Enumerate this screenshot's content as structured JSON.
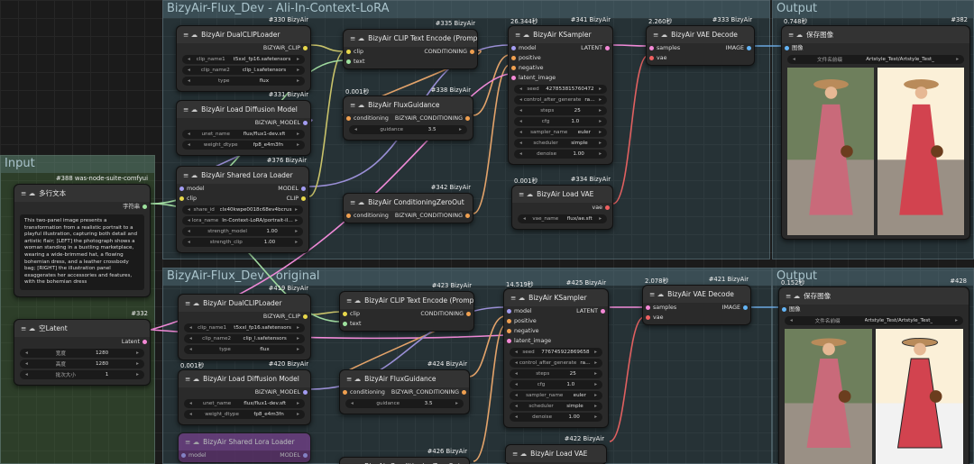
{
  "groups": [
    {
      "title": "BizyAir-Flux_Dev - Ali-In-Context-LoRA"
    },
    {
      "title": "Input"
    },
    {
      "title": "Output"
    },
    {
      "title": "BizyAir-Flux_Dev - original"
    },
    {
      "title": "Output"
    }
  ],
  "nodes": [
    {
      "badge": "#330 BizyAir",
      "title": "BizyAir DualCLIPLoader",
      "inputs": [],
      "outputs": [
        "BIZYAIR_CLIP"
      ],
      "widgets": [
        {
          "name": "clip_name1",
          "value": "t5xxl_fp16.safetensors"
        },
        {
          "name": "clip_name2",
          "value": "clip_l.safetensors"
        },
        {
          "name": "type",
          "value": "flux"
        }
      ]
    },
    {
      "badge": "#331 BizyAir",
      "title": "BizyAir Load Diffusion Model",
      "inputs": [],
      "outputs": [
        "BIZYAIR_MODEL"
      ],
      "widgets": [
        {
          "name": "unet_name",
          "value": "flux/flux1-dev.sft"
        },
        {
          "name": "weight_dtype",
          "value": "fp8_e4m3fn"
        }
      ]
    },
    {
      "badge": "#376 BizyAir",
      "title": "BizyAir Shared Lora Loader",
      "inputs": [
        "model",
        "clip"
      ],
      "outputs": [
        "MODEL",
        "CLIP"
      ],
      "widgets": [
        {
          "name": "share_id",
          "value": "clx40kwpe0018c68ev4bcrus"
        },
        {
          "name": "lora_name",
          "value": "In-Context-LoRA/portrait-illustrat..."
        },
        {
          "name": "strength_model",
          "value": "1.00"
        },
        {
          "name": "strength_clip",
          "value": "1.00"
        }
      ]
    },
    {
      "badge": "#335 BizyAir",
      "title": "BizyAir CLIP Text Encode (Prompt)",
      "inputs": [
        "clip",
        "text"
      ],
      "outputs": [
        "CONDITIONING"
      ],
      "widgets": []
    },
    {
      "badge": "#338 BizyAir",
      "time": "0.001秒",
      "title": "BizyAir FluxGuidance",
      "inputs": [
        "conditioning"
      ],
      "outputs": [
        "BIZYAIR_CONDITIONING"
      ],
      "widgets": [
        {
          "name": "guidance",
          "value": "3.5"
        }
      ]
    },
    {
      "badge": "#342 BizyAir",
      "title": "BizyAir ConditioningZeroOut",
      "inputs": [
        "conditioning"
      ],
      "outputs": [
        "BIZYAIR_CONDITIONING"
      ],
      "widgets": []
    },
    {
      "badge": "#341 BizyAir",
      "time": "26.344秒",
      "title": "BizyAir KSampler",
      "inputs": [
        "model",
        "positive",
        "negative",
        "latent_image"
      ],
      "outputs": [
        "LATENT"
      ],
      "widgets": [
        {
          "name": "seed",
          "value": "427853815760472"
        },
        {
          "name": "control_after_generate",
          "value": "randomize"
        },
        {
          "name": "steps",
          "value": "25"
        },
        {
          "name": "cfg",
          "value": "1.0"
        },
        {
          "name": "sampler_name",
          "value": "euler"
        },
        {
          "name": "scheduler",
          "value": "simple"
        },
        {
          "name": "denoise",
          "value": "1.00"
        }
      ]
    },
    {
      "badge": "#334 BizyAir",
      "time": "0.001秒",
      "title": "BizyAir Load VAE",
      "inputs": [],
      "outputs": [
        "vae"
      ],
      "widgets": [
        {
          "name": "vae_name",
          "value": "flux/ae.sft"
        }
      ]
    },
    {
      "badge": "#333 BizyAir",
      "time": "2.260秒",
      "title": "BizyAir VAE Decode",
      "inputs": [
        "samples",
        "vae"
      ],
      "outputs": [
        "IMAGE"
      ],
      "widgets": []
    },
    {
      "badge": "#382",
      "time": "0.748秒",
      "title": "保存图像",
      "inputs": [
        "图像"
      ],
      "outputs": [],
      "widgets": [
        {
          "name": "文件名前缀",
          "value": "Artstyle_Test/Artstyle_Test_"
        }
      ]
    },
    {
      "badge": "#388 was-node-suite-comfyui",
      "title": "多行文本",
      "inputs": [],
      "outputs": [
        "字符串"
      ],
      "widgets": [],
      "text": "This two-panel image presents a transformation from a realistic portrait to a playful illustration, capturing both detail and artistic flair; [LEFT] the photograph shows a woman standing in a bustling marketplace, wearing a wide-brimmed hat, a flowing bohemian dress, and a leather crossbody bag; [RIGHT] the illustration panel exaggerates her accessories and features, with the bohemian dress"
    },
    {
      "badge": "#332",
      "title": "空Latent",
      "inputs": [],
      "outputs": [
        "Latent"
      ],
      "widgets": [
        {
          "name": "宽度",
          "value": "1280"
        },
        {
          "name": "高度",
          "value": "1280"
        },
        {
          "name": "批次大小",
          "value": "1"
        }
      ]
    },
    {
      "badge": "#419 BizyAir",
      "title": "BizyAir DualCLIPLoader",
      "inputs": [],
      "outputs": [
        "BIZYAIR_CLIP"
      ],
      "widgets": [
        {
          "name": "clip_name1",
          "value": "t5xxl_fp16.safetensors"
        },
        {
          "name": "clip_name2",
          "value": "clip_l.safetensors"
        },
        {
          "name": "type",
          "value": "flux"
        }
      ]
    },
    {
      "badge": "#420 BizyAir",
      "time": "0.001秒",
      "title": "BizyAir Load Diffusion Model",
      "inputs": [],
      "outputs": [
        "BIZYAIR_MODEL"
      ],
      "widgets": [
        {
          "name": "unet_name",
          "value": "flux/flux1-dev.sft"
        },
        {
          "name": "weight_dtype",
          "value": "fp8_e4m3fn"
        }
      ]
    },
    {
      "title": "BizyAir Shared Lora Loader",
      "inputs": [
        "model"
      ],
      "outputs": [
        "MODEL"
      ],
      "widgets": []
    },
    {
      "badge": "#423 BizyAir",
      "title": "BizyAir CLIP Text Encode (Prompt)",
      "inputs": [
        "clip",
        "text"
      ],
      "outputs": [
        "CONDITIONING"
      ],
      "widgets": []
    },
    {
      "badge": "#424 BizyAir",
      "title": "BizyAir FluxGuidance",
      "inputs": [
        "conditioning"
      ],
      "outputs": [
        "BIZYAIR_CONDITIONING"
      ],
      "widgets": [
        {
          "name": "guidance",
          "value": "3.5"
        }
      ]
    },
    {
      "badge": "#426 BizyAir",
      "title": "BizyAir ConditioningZeroOut",
      "inputs": [],
      "outputs": [],
      "widgets": []
    },
    {
      "badge": "#425 BizyAir",
      "time": "14.519秒",
      "title": "BizyAir KSampler",
      "inputs": [
        "model",
        "positive",
        "negative",
        "latent_image"
      ],
      "outputs": [
        "LATENT"
      ],
      "widgets": [
        {
          "name": "seed",
          "value": "776745922869658"
        },
        {
          "name": "control_after_generate",
          "value": "randomize"
        },
        {
          "name": "steps",
          "value": "25"
        },
        {
          "name": "cfg",
          "value": "1.0"
        },
        {
          "name": "sampler_name",
          "value": "euler"
        },
        {
          "name": "scheduler",
          "value": "simple"
        },
        {
          "name": "denoise",
          "value": "1.00"
        }
      ]
    },
    {
      "badge": "#422 BizyAir",
      "title": "BizyAir Load VAE",
      "inputs": [],
      "outputs": [],
      "widgets": []
    },
    {
      "badge": "#421 BizyAir",
      "time": "2.078秒",
      "title": "BizyAir VAE Decode",
      "inputs": [
        "samples",
        "vae"
      ],
      "outputs": [
        "IMAGE"
      ],
      "widgets": []
    },
    {
      "badge": "#428",
      "time": "0.152秒",
      "title": "保存图像",
      "inputs": [
        "图像"
      ],
      "outputs": [],
      "widgets": [
        {
          "name": "文件名前缀",
          "value": "Artstyle_Test/Artstyle_Test_"
        }
      ]
    }
  ]
}
